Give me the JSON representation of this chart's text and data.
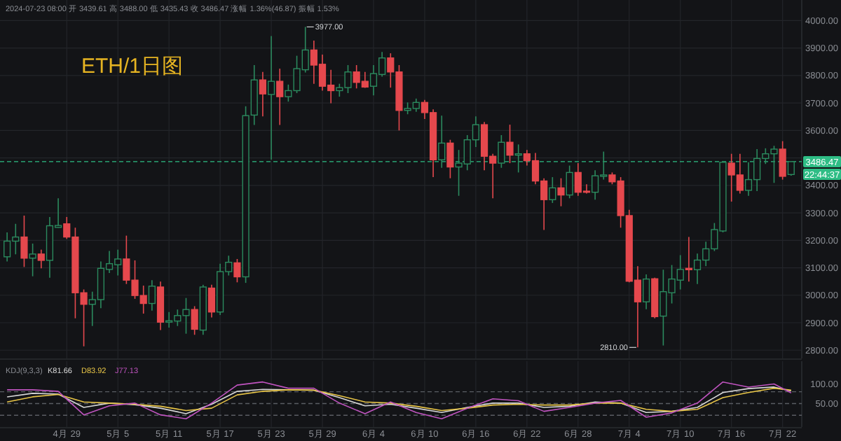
{
  "chart_data": [
    {
      "type": "candlestick",
      "title": "ETH/1日图",
      "subtitle": "2024-07-23 08:00  开 3439.61  高 3488.00  低 3435.43  收 3486.47  涨幅 1.36%(46.87)  振幅 1.53%",
      "x": [
        "2024-04-22",
        "2024-04-23",
        "2024-04-24",
        "2024-04-25",
        "2024-04-26",
        "2024-04-27",
        "2024-04-28",
        "2024-04-29",
        "2024-04-30",
        "2024-05-01",
        "2024-05-02",
        "2024-05-03",
        "2024-05-04",
        "2024-05-05",
        "2024-05-06",
        "2024-05-07",
        "2024-05-08",
        "2024-05-09",
        "2024-05-10",
        "2024-05-11",
        "2024-05-12",
        "2024-05-13",
        "2024-05-14",
        "2024-05-15",
        "2024-05-16",
        "2024-05-17",
        "2024-05-18",
        "2024-05-19",
        "2024-05-20",
        "2024-05-21",
        "2024-05-22",
        "2024-05-23",
        "2024-05-24",
        "2024-05-25",
        "2024-05-26",
        "2024-05-27",
        "2024-05-28",
        "2024-05-29",
        "2024-05-30",
        "2024-05-31",
        "2024-06-01",
        "2024-06-02",
        "2024-06-03",
        "2024-06-04",
        "2024-06-05",
        "2024-06-06",
        "2024-06-07",
        "2024-06-08",
        "2024-06-09",
        "2024-06-10",
        "2024-06-11",
        "2024-06-12",
        "2024-06-13",
        "2024-06-14",
        "2024-06-15",
        "2024-06-16",
        "2024-06-17",
        "2024-06-18",
        "2024-06-19",
        "2024-06-20",
        "2024-06-21",
        "2024-06-22",
        "2024-06-23",
        "2024-06-24",
        "2024-06-25",
        "2024-06-26",
        "2024-06-27",
        "2024-06-28",
        "2024-06-29",
        "2024-06-30",
        "2024-07-01",
        "2024-07-02",
        "2024-07-03",
        "2024-07-04",
        "2024-07-05",
        "2024-07-06",
        "2024-07-07",
        "2024-07-08",
        "2024-07-09",
        "2024-07-10",
        "2024-07-11",
        "2024-07-12",
        "2024-07-13",
        "2024-07-14",
        "2024-07-15",
        "2024-07-16",
        "2024-07-17",
        "2024-07-18",
        "2024-07-19",
        "2024-07-20",
        "2024-07-21",
        "2024-07-22",
        "2024-07-23"
      ],
      "ohlc": [
        [
          3140,
          3229,
          3123,
          3197
        ],
        [
          3197,
          3260,
          3149,
          3212
        ],
        [
          3212,
          3290,
          3103,
          3135
        ],
        [
          3135,
          3188,
          3069,
          3150
        ],
        [
          3150,
          3166,
          3098,
          3127
        ],
        [
          3127,
          3285,
          3064,
          3253
        ],
        [
          3247,
          3353,
          3246,
          3254
        ],
        [
          3260,
          3285,
          3205,
          3212
        ],
        [
          3212,
          3246,
          2916,
          3009
        ],
        [
          3009,
          3021,
          2814,
          2967
        ],
        [
          2967,
          3013,
          2888,
          2984
        ],
        [
          2984,
          3123,
          2953,
          3098
        ],
        [
          3094,
          3161,
          3081,
          3115
        ],
        [
          3111,
          3166,
          3072,
          3132
        ],
        [
          3132,
          3217,
          3041,
          3055
        ],
        [
          3055,
          3127,
          2987,
          2999
        ],
        [
          2999,
          3035,
          2933,
          2970
        ],
        [
          2970,
          3055,
          2944,
          3033
        ],
        [
          3030,
          3050,
          2873,
          2902
        ],
        [
          2902,
          2939,
          2882,
          2907
        ],
        [
          2906,
          2948,
          2888,
          2926
        ],
        [
          2926,
          2990,
          2860,
          2948
        ],
        [
          2948,
          2960,
          2856,
          2876
        ],
        [
          2873,
          3038,
          2856,
          3030
        ],
        [
          3026,
          3038,
          2919,
          2939
        ],
        [
          2939,
          3115,
          2928,
          3086
        ],
        [
          3086,
          3144,
          3072,
          3120
        ],
        [
          3118,
          3132,
          3047,
          3067
        ],
        [
          3067,
          3688,
          3045,
          3654
        ],
        [
          3656,
          3838,
          3620,
          3784
        ],
        [
          3784,
          3813,
          3651,
          3733
        ],
        [
          3731,
          3944,
          3494,
          3779
        ],
        [
          3779,
          3825,
          3620,
          3723
        ],
        [
          3723,
          3767,
          3705,
          3745
        ],
        [
          3745,
          3872,
          3736,
          3825
        ],
        [
          3821,
          3977,
          3811,
          3893
        ],
        [
          3893,
          3927,
          3770,
          3838
        ],
        [
          3841,
          3876,
          3745,
          3761
        ],
        [
          3765,
          3821,
          3699,
          3745
        ],
        [
          3745,
          3770,
          3723,
          3756
        ],
        [
          3756,
          3838,
          3736,
          3813
        ],
        [
          3813,
          3838,
          3753,
          3775
        ],
        [
          3779,
          3813,
          3755,
          3758
        ],
        [
          3761,
          3838,
          3728,
          3807
        ],
        [
          3804,
          3886,
          3796,
          3864
        ],
        [
          3864,
          3881,
          3756,
          3813
        ],
        [
          3813,
          3838,
          3600,
          3673
        ],
        [
          3673,
          3702,
          3659,
          3680
        ],
        [
          3680,
          3716,
          3668,
          3702
        ],
        [
          3702,
          3711,
          3642,
          3665
        ],
        [
          3665,
          3677,
          3430,
          3493
        ],
        [
          3493,
          3654,
          3464,
          3554
        ],
        [
          3554,
          3566,
          3426,
          3467
        ],
        [
          3467,
          3529,
          3362,
          3481
        ],
        [
          3478,
          3583,
          3455,
          3566
        ],
        [
          3566,
          3651,
          3540,
          3621
        ],
        [
          3621,
          3631,
          3455,
          3506
        ],
        [
          3506,
          3515,
          3353,
          3481
        ],
        [
          3481,
          3583,
          3464,
          3557
        ],
        [
          3557,
          3621,
          3481,
          3510
        ],
        [
          3510,
          3549,
          3447,
          3515
        ],
        [
          3515,
          3529,
          3472,
          3490
        ],
        [
          3490,
          3518,
          3404,
          3416
        ],
        [
          3416,
          3426,
          3238,
          3348
        ],
        [
          3348,
          3430,
          3336,
          3391
        ],
        [
          3391,
          3426,
          3324,
          3365
        ],
        [
          3365,
          3472,
          3353,
          3447
        ],
        [
          3447,
          3481,
          3362,
          3375
        ],
        [
          3379,
          3404,
          3370,
          3375
        ],
        [
          3375,
          3455,
          3348,
          3435
        ],
        [
          3433,
          3523,
          3421,
          3438
        ],
        [
          3438,
          3447,
          3404,
          3413
        ],
        [
          3416,
          3430,
          3246,
          3290
        ],
        [
          3290,
          3311,
          3047,
          3051
        ],
        [
          3055,
          3106,
          2810,
          2976
        ],
        [
          2976,
          3076,
          2949,
          3059
        ],
        [
          3060,
          3064,
          2916,
          2922
        ],
        [
          2924,
          3093,
          2817,
          3013
        ],
        [
          3009,
          3110,
          2970,
          3059
        ],
        [
          3055,
          3146,
          3021,
          3094
        ],
        [
          3098,
          3212,
          3050,
          3093
        ],
        [
          3093,
          3152,
          3041,
          3128
        ],
        [
          3128,
          3195,
          3106,
          3169
        ],
        [
          3169,
          3263,
          3161,
          3239
        ],
        [
          3234,
          3489,
          3229,
          3484
        ],
        [
          3481,
          3515,
          3341,
          3438
        ],
        [
          3438,
          3515,
          3370,
          3382
        ],
        [
          3382,
          3484,
          3362,
          3421
        ],
        [
          3421,
          3532,
          3379,
          3498
        ],
        [
          3498,
          3535,
          3478,
          3515
        ],
        [
          3515,
          3544,
          3409,
          3532
        ],
        [
          3532,
          3561,
          3421,
          3433
        ],
        [
          3439.61,
          3488,
          3435.43,
          3486.47
        ]
      ],
      "colors": [
        "#2b8a5e",
        "#2b8a5e",
        "#e5484d",
        "#2b8a5e",
        "#e5484d",
        "#2b8a5e",
        "#2b8a5e",
        "#e5484d",
        "#e5484d",
        "#e5484d",
        "#2b8a5e",
        "#2b8a5e",
        "#2b8a5e",
        "#2b8a5e",
        "#e5484d",
        "#e5484d",
        "#e5484d",
        "#2b8a5e",
        "#e5484d",
        "#2b8a5e",
        "#2b8a5e",
        "#2b8a5e",
        "#e5484d",
        "#2b8a5e",
        "#e5484d",
        "#2b8a5e",
        "#2b8a5e",
        "#e5484d",
        "#2b8a5e",
        "#2b8a5e",
        "#e5484d",
        "#2b8a5e",
        "#e5484d",
        "#2b8a5e",
        "#2b8a5e",
        "#2b8a5e",
        "#e5484d",
        "#e5484d",
        "#e5484d",
        "#2b8a5e",
        "#2b8a5e",
        "#e5484d",
        "#e5484d",
        "#2b8a5e",
        "#2b8a5e",
        "#e5484d",
        "#e5484d",
        "#2b8a5e",
        "#2b8a5e",
        "#e5484d",
        "#e5484d",
        "#2b8a5e",
        "#e5484d",
        "#2b8a5e",
        "#2b8a5e",
        "#2b8a5e",
        "#e5484d",
        "#e5484d",
        "#2b8a5e",
        "#e5484d",
        "#2b8a5e",
        "#e5484d",
        "#e5484d",
        "#e5484d",
        "#2b8a5e",
        "#e5484d",
        "#2b8a5e",
        "#e5484d",
        "#e5484d",
        "#2b8a5e",
        "#2b8a5e",
        "#e5484d",
        "#e5484d",
        "#e5484d",
        "#e5484d",
        "#2b8a5e",
        "#e5484d",
        "#2b8a5e",
        "#2b8a5e",
        "#2b8a5e",
        "#e5484d",
        "#2b8a5e",
        "#2b8a5e",
        "#2b8a5e",
        "#2b8a5e",
        "#e5484d",
        "#e5484d",
        "#2b8a5e",
        "#2b8a5e",
        "#2b8a5e",
        "#2b8a5e",
        "#e5484d",
        "#2b8a5e"
      ],
      "xlim": [
        "2024-04-21T04:00",
        "2024-07-24T06:00"
      ],
      "xticks": [
        {
          "value": "2024-04-29",
          "label": null
        },
        {
          "value": "2024-05-05",
          "label": null
        },
        {
          "value": "2024-05-11",
          "label": null
        },
        {
          "value": "2024-05-17",
          "label": null
        },
        {
          "value": "2024-05-23",
          "label": null
        },
        {
          "value": "2024-05-29",
          "label": null
        },
        {
          "value": "2024-06-04",
          "label": null
        },
        {
          "value": "2024-06-10",
          "label": null
        },
        {
          "value": "2024-06-16",
          "label": null
        },
        {
          "value": "2024-06-22",
          "label": null
        },
        {
          "value": "2024-06-28",
          "label": null
        },
        {
          "value": "2024-07-04",
          "label": null
        },
        {
          "value": "2024-07-10",
          "label": null
        },
        {
          "value": "2024-07-16",
          "label": null
        },
        {
          "value": "2024-07-22",
          "label": null
        }
      ],
      "ylim": [
        2770,
        4075
      ],
      "yticks": [
        {
          "value": 2800,
          "label": "2800.00"
        },
        {
          "value": 2900,
          "label": "2900.00"
        },
        {
          "value": 3000,
          "label": "3000.00"
        },
        {
          "value": 3100,
          "label": "3100.00"
        },
        {
          "value": 3200,
          "label": "3200.00"
        },
        {
          "value": 3300,
          "label": "3300.00"
        },
        {
          "value": 3400,
          "label": "3400.00"
        },
        {
          "value": 3500,
          "label": null
        },
        {
          "value": 3600,
          "label": "3600.00"
        },
        {
          "value": 3700,
          "label": "3700.00"
        },
        {
          "value": 3800,
          "label": "3800.00"
        },
        {
          "value": 3900,
          "label": "3900.00"
        },
        {
          "value": 4000,
          "label": "4000.00"
        }
      ],
      "grid": true,
      "tick_labels": "y",
      "ref_lines": [
        {
          "axis": "y",
          "value": 3486.47,
          "label": "3486.47",
          "color": "#2ebd85",
          "line_style": "dashed"
        }
      ],
      "annotations": [
        {
          "text": "3977.00",
          "x": "2024-05-27",
          "y": 3977
        },
        {
          "text": "2810.00",
          "x": "2024-07-05",
          "y": 2810
        },
        "22:44:37"
      ]
    },
    {
      "type": "line",
      "title": "KDJ(9,3,3)",
      "x": [
        "2024-04-22",
        "2024-04-25",
        "2024-04-28",
        "2024-05-01",
        "2024-05-04",
        "2024-05-07",
        "2024-05-10",
        "2024-05-13",
        "2024-05-16",
        "2024-05-19",
        "2024-05-22",
        "2024-05-25",
        "2024-05-28",
        "2024-05-31",
        "2024-06-03",
        "2024-06-06",
        "2024-06-09",
        "2024-06-12",
        "2024-06-15",
        "2024-06-18",
        "2024-06-21",
        "2024-06-24",
        "2024-06-27",
        "2024-06-30",
        "2024-07-03",
        "2024-07-06",
        "2024-07-09",
        "2024-07-12",
        "2024-07-15",
        "2024-07-18",
        "2024-07-21",
        "2024-07-23"
      ],
      "series": [
        {
          "name": "K81.66",
          "color": "#d8d8d8",
          "values": [
            67,
            76,
            74,
            40,
            51,
            47,
            38,
            24,
            48,
            81,
            86,
            85,
            84,
            65,
            44,
            48,
            38,
            27,
            40,
            51,
            51,
            40,
            43,
            54,
            51,
            27,
            30,
            40,
            78,
            88,
            92,
            82
          ]
        },
        {
          "name": "D83.92",
          "color": "#e8c547",
          "values": [
            54,
            67,
            73,
            54,
            51,
            48,
            43,
            32,
            38,
            72,
            81,
            85,
            84,
            70,
            54,
            51,
            43,
            32,
            38,
            46,
            48,
            46,
            46,
            51,
            51,
            35,
            30,
            35,
            65,
            78,
            89,
            84
          ]
        },
        {
          "name": "J77.13",
          "color": "#c054c0",
          "values": [
            85,
            85,
            81,
            21,
            44,
            51,
            21,
            11,
            51,
            97,
            105,
            89,
            89,
            51,
            24,
            54,
            27,
            11,
            38,
            62,
            57,
            30,
            40,
            51,
            58,
            15,
            26,
            51,
            105,
            92,
            100,
            77
          ]
        }
      ],
      "xlim": [
        "2024-04-21T04:00",
        "2024-07-24T06:00"
      ],
      "xticks": [
        {
          "value": "2024-04-29",
          "label": "4月 29"
        },
        {
          "value": "2024-05-05",
          "label": "5月 5"
        },
        {
          "value": "2024-05-11",
          "label": "5月 11"
        },
        {
          "value": "2024-05-17",
          "label": "5月 17"
        },
        {
          "value": "2024-05-23",
          "label": "5月 23"
        },
        {
          "value": "2024-05-29",
          "label": "5月 29"
        },
        {
          "value": "2024-06-04",
          "label": "6月 4"
        },
        {
          "value": "2024-06-10",
          "label": "6月 10"
        },
        {
          "value": "2024-06-16",
          "label": "6月 16"
        },
        {
          "value": "2024-06-22",
          "label": "6月 22"
        },
        {
          "value": "2024-06-28",
          "label": "6月 28"
        },
        {
          "value": "2024-07-04",
          "label": "7月 4"
        },
        {
          "value": "2024-07-10",
          "label": "7月 10"
        },
        {
          "value": "2024-07-16",
          "label": "7月 16"
        },
        {
          "value": "2024-07-22",
          "label": "7月 22"
        }
      ],
      "ylim": [
        -10,
        158
      ],
      "yticks": [
        {
          "value": 50,
          "label": "50.00"
        },
        {
          "value": 100,
          "label": "100.00"
        }
      ],
      "grid": "x",
      "ref_lines": [
        {
          "axis": "y",
          "value": 80,
          "color": "#5a5d63",
          "line_style": "dashed"
        },
        {
          "axis": "y",
          "value": 50,
          "color": "#5a5d63",
          "line_style": "dashed"
        },
        {
          "axis": "y",
          "value": 20,
          "color": "#5a5d63",
          "line_style": "dashed"
        }
      ]
    }
  ]
}
